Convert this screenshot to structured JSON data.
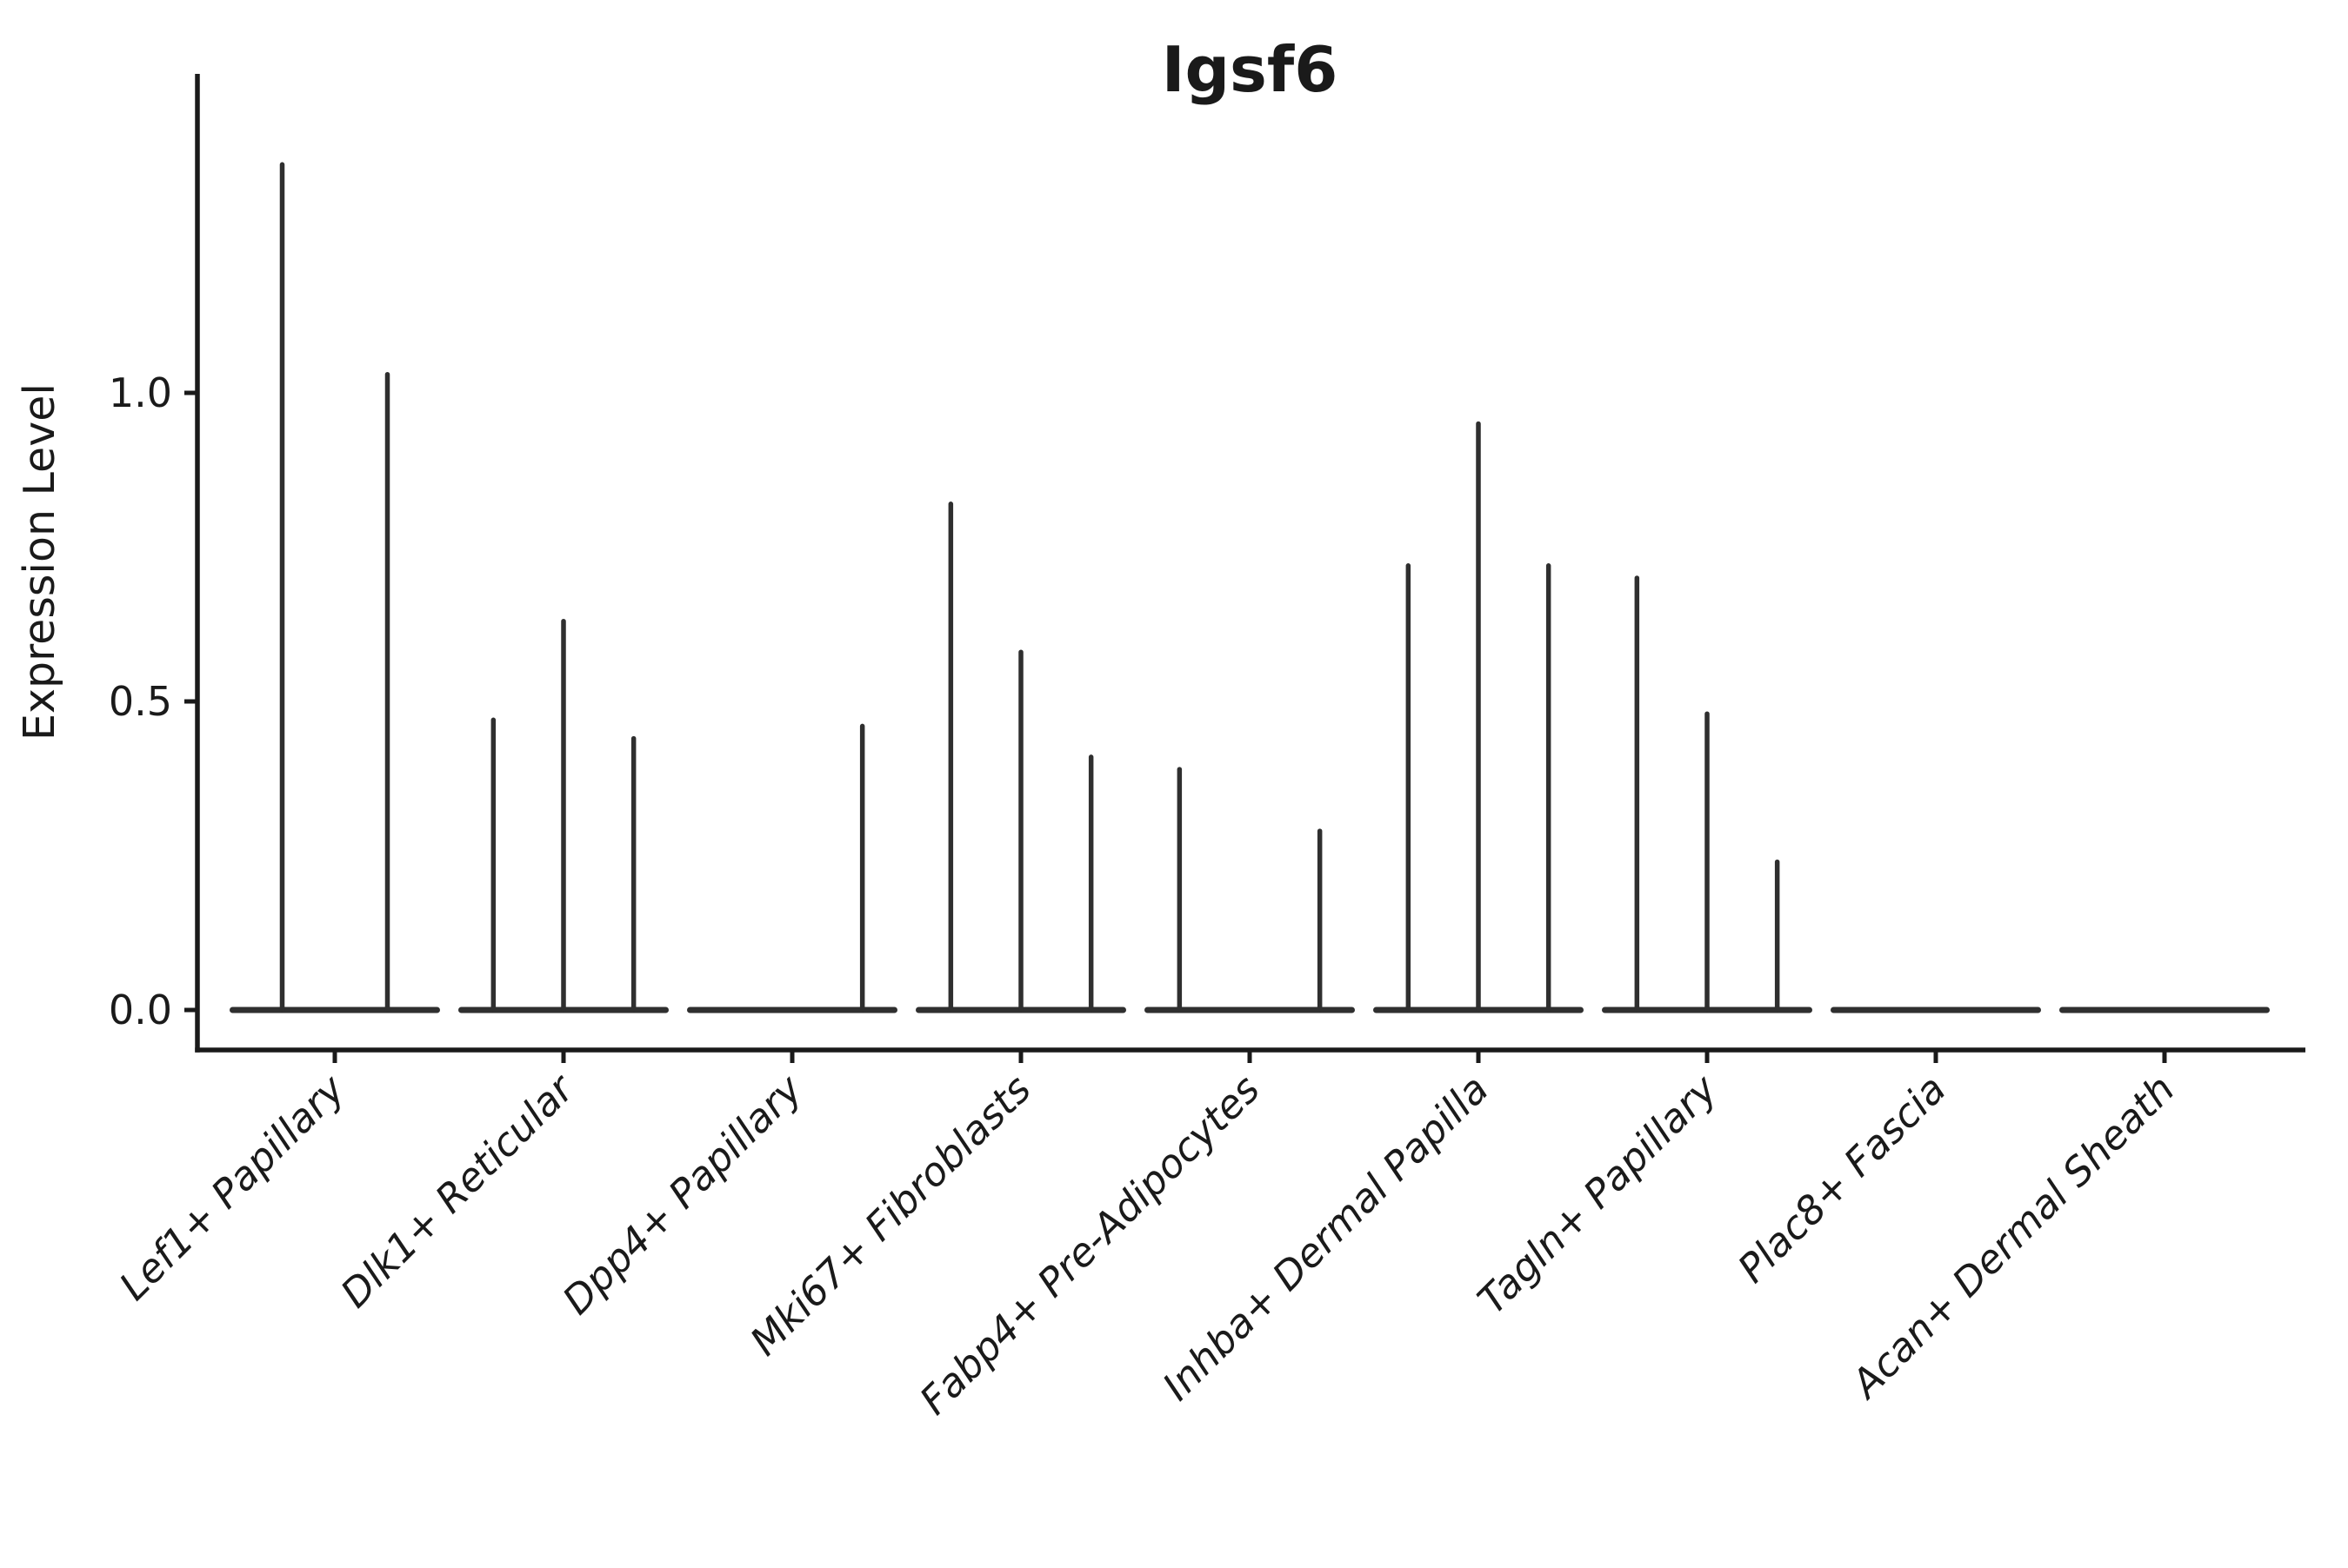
{
  "chart_data": {
    "type": "violin",
    "title": "Igsf6",
    "ylabel": "Expression Level",
    "xlabel": "",
    "ytick_labels": [
      "0.0",
      "0.5",
      "1.0"
    ],
    "ytick_values": [
      0.0,
      0.5,
      1.0
    ],
    "ylim": [
      -0.065,
      1.52
    ],
    "grid": false,
    "legend": "none",
    "style_note": "Seurat-style violin plot; sparse expression so each violin renders as a flat band at 0 with a thin vertical density spike up to its max value; 2-3 split violins per category",
    "violin_color": "#2f2f2f",
    "axis_color": "#1a1a1a",
    "categories": [
      "Lef1+ Papillary",
      "Dlk1+ Reticular",
      "Dpp4+ Papillary",
      "Mki67+ Fibroblasts",
      "Fabp4+ Pre-Adipocytes",
      "Inhba+ Dermal Papilla",
      "Tagln+ Papillary",
      "Plac8+ Fascia",
      "Acan+ Dermal Sheath"
    ],
    "violins": [
      {
        "category": "Lef1+ Papillary",
        "maxima": [
          1.37,
          1.03
        ]
      },
      {
        "category": "Dlk1+ Reticular",
        "maxima": [
          0.47,
          0.63,
          0.44
        ]
      },
      {
        "category": "Dpp4+ Papillary",
        "maxima": [
          0,
          0,
          0.46
        ]
      },
      {
        "category": "Mki67+ Fibroblasts",
        "maxima": [
          0.82,
          0.58,
          0.41
        ]
      },
      {
        "category": "Fabp4+ Pre-Adipocytes",
        "maxima": [
          0.39,
          0,
          0.29
        ]
      },
      {
        "category": "Inhba+ Dermal Papilla",
        "maxima": [
          0.72,
          0.95,
          0.72
        ]
      },
      {
        "category": "Tagln+ Papillary",
        "maxima": [
          0.7,
          0.48,
          0.24
        ]
      },
      {
        "category": "Plac8+ Fascia",
        "maxima": [
          0,
          0,
          0
        ]
      },
      {
        "category": "Acan+ Dermal Sheath",
        "maxima": [
          0,
          0,
          0
        ]
      }
    ]
  }
}
